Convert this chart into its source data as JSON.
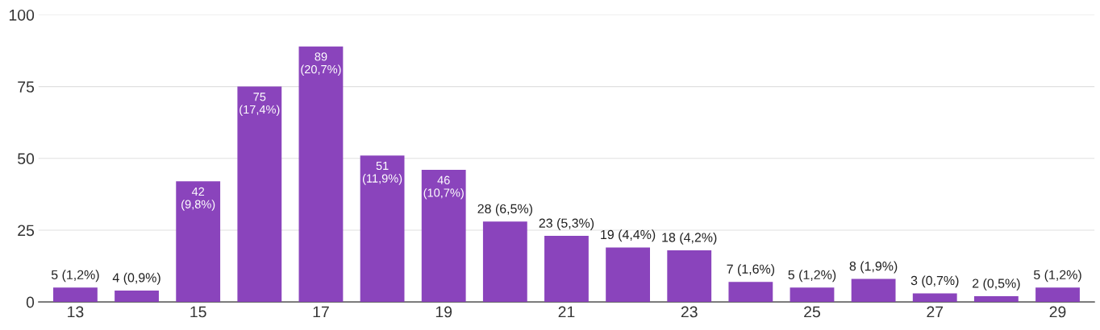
{
  "chart_data": {
    "type": "bar",
    "categories": [
      "13",
      null,
      "15",
      null,
      "17",
      null,
      "19",
      null,
      "21",
      null,
      "23",
      null,
      "25",
      null,
      "27",
      null,
      "29"
    ],
    "values": [
      5,
      4,
      42,
      75,
      89,
      51,
      46,
      28,
      23,
      19,
      18,
      7,
      5,
      8,
      3,
      2,
      5
    ],
    "value_labels": [
      "5 (1,2%)",
      "4 (0,9%)",
      "42 (9,8%)",
      "75 (17,4%)",
      "89 (20,7%)",
      "51 (11,9%)",
      "46 (10,7%)",
      "28 (6,5%)",
      "23 (5,3%)",
      "19 (4,4%)",
      "18 (4,2%)",
      "7 (1,6%)",
      "5 (1,2%)",
      "8 (1,9%)",
      "3 (0,7%)",
      "2 (0,5%)",
      "5 (1,2%)"
    ],
    "color": "#8a44bc",
    "ylim": [
      0,
      100
    ],
    "yticks": [
      0,
      25,
      50,
      75,
      100
    ],
    "grid": "y"
  }
}
